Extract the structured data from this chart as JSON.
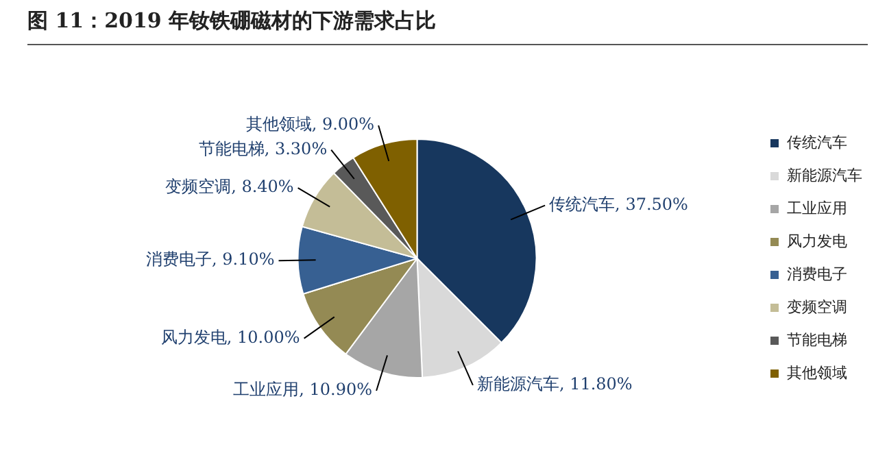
{
  "chart_data": {
    "type": "pie",
    "title": "图 11：2019 年钕铁硼磁材的下游需求占比",
    "categories": [
      "传统汽车",
      "新能源汽车",
      "工业应用",
      "风力发电",
      "消费电子",
      "变频空调",
      "节能电梯",
      "其他领域"
    ],
    "values": [
      37.5,
      11.8,
      10.9,
      10.0,
      9.1,
      8.4,
      3.3,
      9.0
    ],
    "value_labels": [
      "传统汽车, 37.50%",
      "新能源汽车, 11.80%",
      "工业应用, 10.90%",
      "风力发电, 10.00%",
      "消费电子, 9.10%",
      "变频空调, 8.40%",
      "节能电梯, 3.30%",
      "其他领域, 9.00%"
    ],
    "colors": [
      "#17375e",
      "#d9d9d9",
      "#a6a6a6",
      "#948a54",
      "#376092",
      "#c4bd97",
      "#595959",
      "#7f6000"
    ],
    "legend": "right"
  }
}
